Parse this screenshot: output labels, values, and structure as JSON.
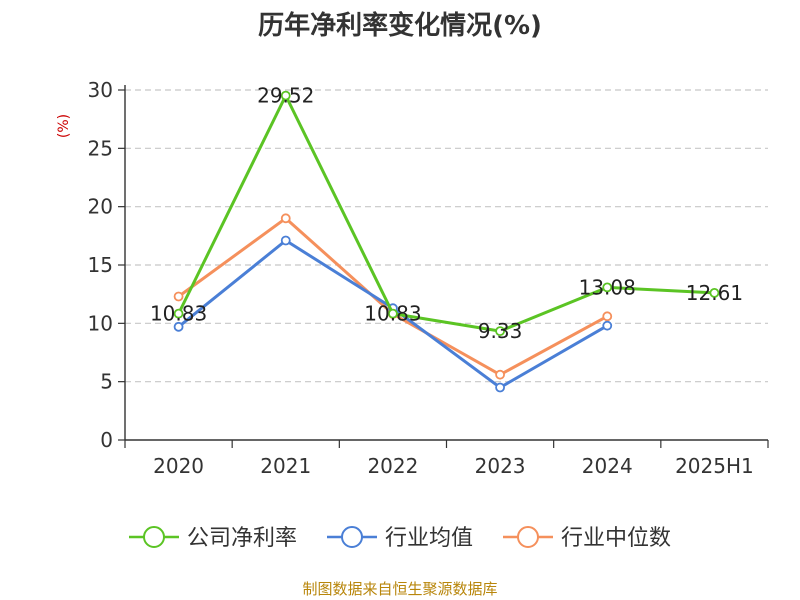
{
  "chart_data": {
    "type": "line",
    "title": "历年净利率变化情况(%)",
    "ylabel": "(%)",
    "xlabel": "",
    "categories": [
      "2020",
      "2021",
      "2022",
      "2023",
      "2024",
      "2025H1"
    ],
    "ylim": [
      0,
      30
    ],
    "yticks": [
      0,
      5,
      10,
      15,
      20,
      25,
      30
    ],
    "grid": true,
    "legend_position": "bottom",
    "series": [
      {
        "name": "公司净利率",
        "color": "#5bc424",
        "values": [
          10.83,
          29.52,
          10.83,
          9.33,
          13.08,
          12.61
        ],
        "labels": [
          "10.83",
          "29.52",
          "10.83",
          "9.33",
          "13.08",
          "12.61"
        ]
      },
      {
        "name": "行业均值",
        "color": "#4a7fd6",
        "values": [
          9.7,
          17.1,
          11.3,
          4.5,
          9.8,
          null
        ]
      },
      {
        "name": "行业中位数",
        "color": "#f5905c",
        "values": [
          12.3,
          19.0,
          10.8,
          5.6,
          10.6,
          null
        ]
      }
    ],
    "source": "制图数据来自恒生聚源数据库"
  }
}
